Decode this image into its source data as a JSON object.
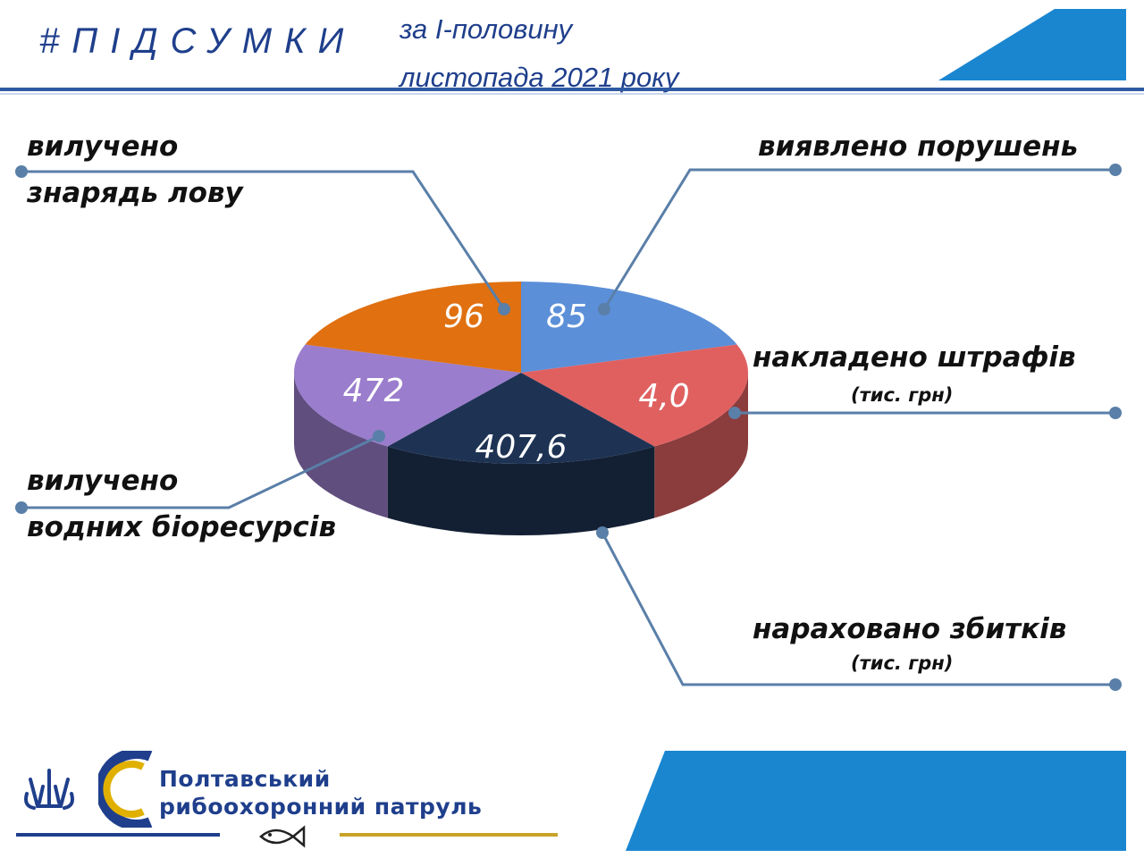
{
  "header": {
    "hashtag": "#ПІДСУМКИ",
    "subtitle_line1": "за І-половину",
    "subtitle_line2": "листопада 2021 року"
  },
  "chart_data": {
    "type": "pie",
    "values_shown": [
      "85",
      "4,0",
      "407,6",
      "472",
      "96"
    ],
    "slices": [
      {
        "label": "виявлено порушень",
        "value": 85,
        "value_text": "85",
        "color": "#5b8fd8"
      },
      {
        "label": "накладено штрафів (тис. грн)",
        "value": 4.0,
        "value_text": "4,0",
        "color": "#e06060"
      },
      {
        "label": "нараховано збитків (тис. грн)",
        "value": 407.6,
        "value_text": "407,6",
        "color": "#1e3354"
      },
      {
        "label": "вилучено водних біоресурсів",
        "value": 472,
        "value_text": "472",
        "color": "#9a7dcc"
      },
      {
        "label": "вилучено знарядь лову",
        "value": 96,
        "value_text": "96",
        "color": "#e07010"
      }
    ],
    "note": "3D pie; slice angles are drawn uniformly"
  },
  "labels": {
    "gear_line1": "вилучено",
    "gear_line2": "знарядь лову",
    "violations": "виявлено порушень",
    "fines": "накладено штрафів",
    "fines_unit": "(тис. грн)",
    "bio_line1": "вилучено",
    "bio_line2": "водних біоресурсів",
    "damages": "нараховано збитків",
    "damages_unit": "(тис. грн)"
  },
  "footer": {
    "org_line1": "Полтавський",
    "org_line2": "рибоохоронний патруль"
  },
  "colors": {
    "brand_blue": "#1f3f8c",
    "accent_blue": "#1a86d0",
    "gold": "#c9a227",
    "leader": "#5a7fa8"
  }
}
